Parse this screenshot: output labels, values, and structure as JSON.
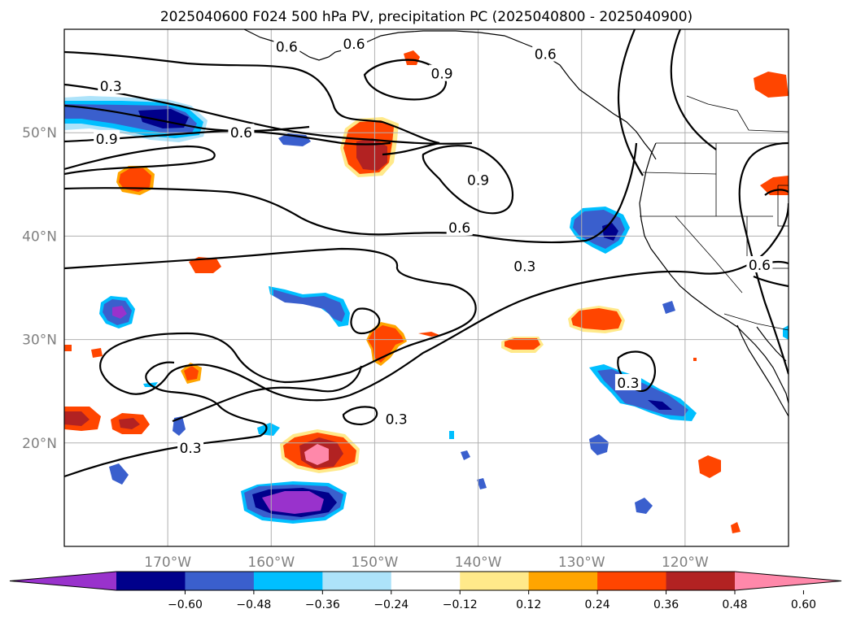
{
  "title": "2025040600 F024 500 hPa PV, precipitation PC (2025040800 - 2025040900)",
  "map": {
    "lon_range": [
      -180,
      -110
    ],
    "lat_range": [
      10,
      60
    ],
    "lon_ticks": [
      {
        "lon": -170,
        "label": "170°W"
      },
      {
        "lon": -160,
        "label": "160°W"
      },
      {
        "lon": -150,
        "label": "150°W"
      },
      {
        "lon": -140,
        "label": "140°W"
      },
      {
        "lon": -130,
        "label": "130°W"
      },
      {
        "lon": -120,
        "label": "120°W"
      }
    ],
    "lat_ticks": [
      {
        "lat": 50,
        "label": "50°N"
      },
      {
        "lat": 40,
        "label": "40°N"
      },
      {
        "lat": 30,
        "label": "30°N"
      },
      {
        "lat": 20,
        "label": "20°N"
      }
    ],
    "grid": true
  },
  "contour_labels": [
    {
      "text": "0.6",
      "lon": -158.5,
      "lat": 58.3
    },
    {
      "text": "0.6",
      "lon": -152.0,
      "lat": 58.6
    },
    {
      "text": "0.6",
      "lon": -133.5,
      "lat": 57.6
    },
    {
      "text": "0.9",
      "lon": -143.5,
      "lat": 55.7
    },
    {
      "text": "0.3",
      "lon": -175.5,
      "lat": 54.5
    },
    {
      "text": "0.6",
      "lon": -162.9,
      "lat": 50.0
    },
    {
      "text": "0.9",
      "lon": -175.9,
      "lat": 49.4
    },
    {
      "text": "0.9",
      "lon": -140.0,
      "lat": 45.4
    },
    {
      "text": "0.6",
      "lon": -141.8,
      "lat": 40.8
    },
    {
      "text": "0.3",
      "lon": -135.5,
      "lat": 37.1
    },
    {
      "text": "0.3",
      "lon": -147.9,
      "lat": 22.3
    },
    {
      "text": "0.3",
      "lon": -167.8,
      "lat": 19.5
    },
    {
      "text": "0.3",
      "lon": -125.5,
      "lat": 25.8
    },
    {
      "text": "0.6",
      "lon": -112.8,
      "lat": 37.2
    }
  ],
  "colorbar": {
    "colors": [
      "#9932CC",
      "#00008B",
      "#3A5FCD",
      "#00BFFF",
      "#ADE3FA",
      "#FFFFFF",
      "#FFE98A",
      "#FFA500",
      "#FF4500",
      "#B22222",
      "#FF88AA"
    ],
    "ticks": [
      "−0.60",
      "−0.48",
      "−0.36",
      "−0.24",
      "−0.12",
      "0.12",
      "0.24",
      "0.36",
      "0.48",
      "0.60"
    ]
  }
}
